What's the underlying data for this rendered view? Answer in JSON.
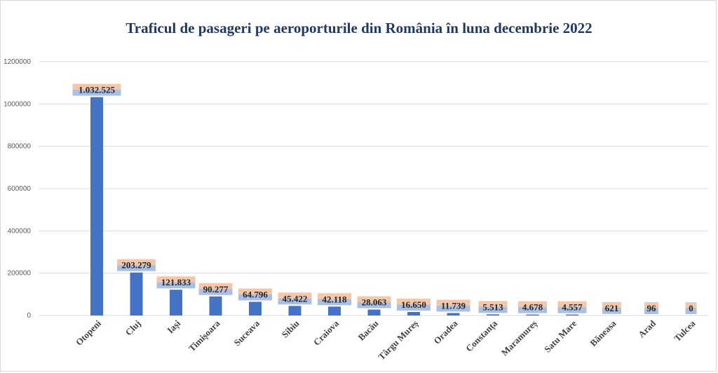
{
  "chart_data": {
    "type": "bar",
    "title": "Traficul de pasageri pe aeroporturile din România în luna decembrie 2022",
    "xlabel": "",
    "ylabel": "",
    "ylim": [
      0,
      1200000
    ],
    "yticks": [
      "0",
      "200000",
      "400000",
      "600000",
      "800000",
      "1000000",
      "1200000"
    ],
    "grid": true,
    "categories": [
      "Otopeni",
      "Cluj",
      "Iași",
      "Timișoara",
      "Suceava",
      "Sibiu",
      "Craiova",
      "Bacău",
      "Târgu Mureș",
      "Oradea",
      "Constanța",
      "Maramureș",
      "Satu Mare",
      "Băneasa",
      "Arad",
      "Tulcea"
    ],
    "values": [
      1032525,
      203279,
      121833,
      90277,
      64796,
      45422,
      42118,
      28063,
      16650,
      11739,
      5513,
      4678,
      4557,
      621,
      96,
      0
    ],
    "data_labels": [
      "1.032.525",
      "203.279",
      "121.833",
      "90.277",
      "64.796",
      "45.422",
      "42.118",
      "28.063",
      "16.650",
      "11.739",
      "5.513",
      "4.678",
      "4.557",
      "621",
      "96",
      "0"
    ],
    "colors": {
      "bar": "#4472c4",
      "label_top": "#f4c7a8",
      "label_bottom": "#a9bfe3",
      "grid": "#d9d9d9",
      "title": "#1f3864"
    }
  }
}
